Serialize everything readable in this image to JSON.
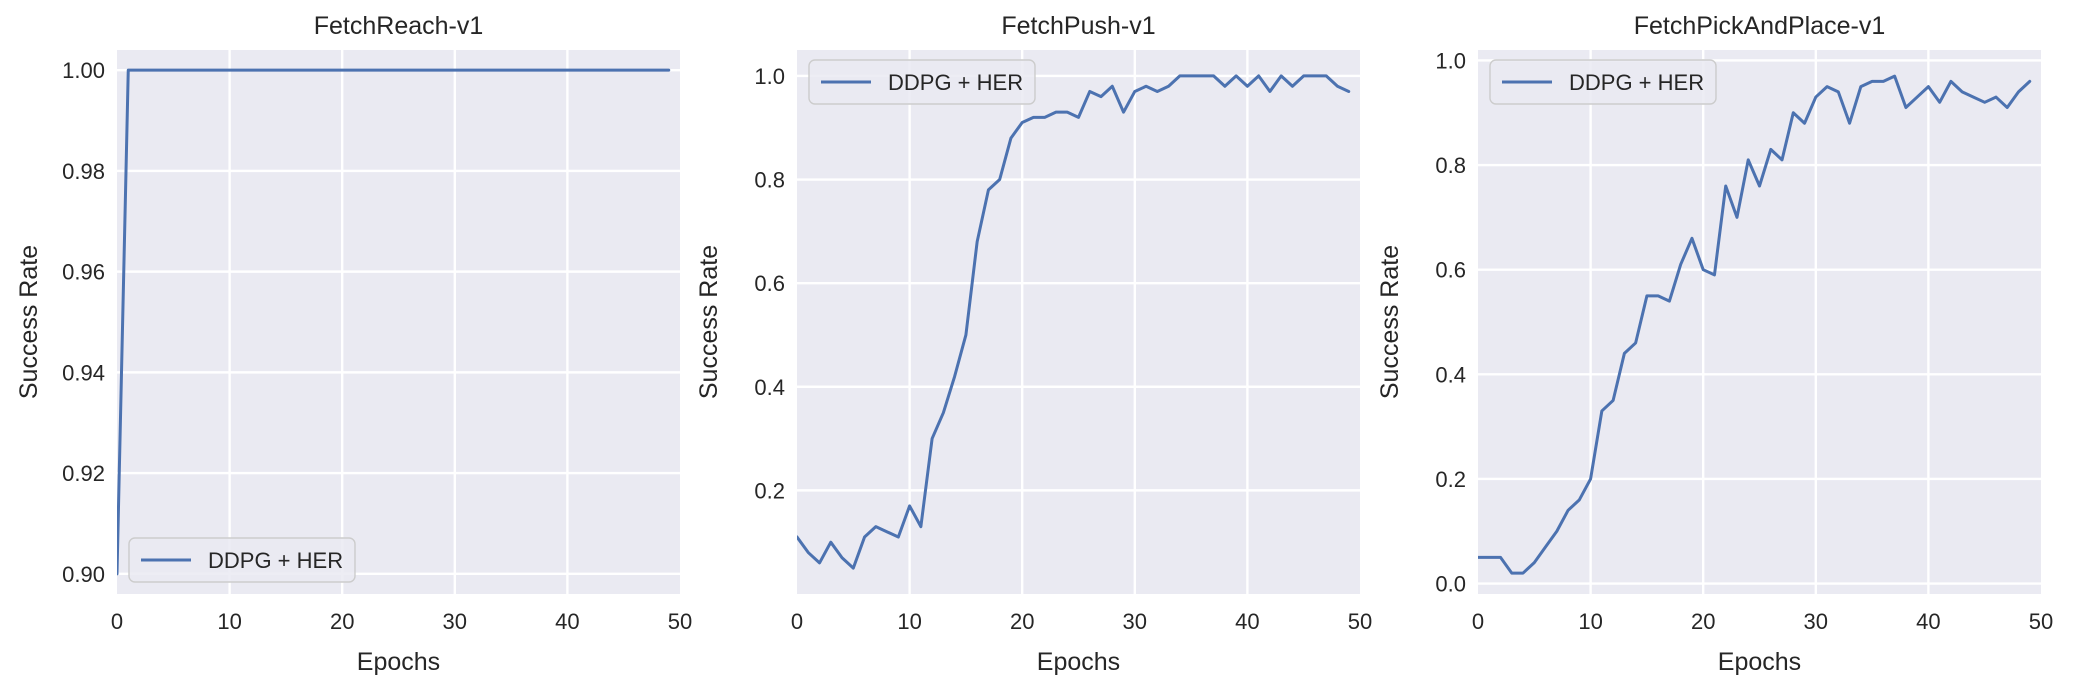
{
  "chart_data": [
    {
      "type": "line",
      "title": "FetchReach-v1",
      "xlabel": "Epochs",
      "ylabel": "Success Rate",
      "xlim": [
        0,
        50
      ],
      "ylim": [
        0.896,
        1.004
      ],
      "xticks": [
        0,
        10,
        20,
        30,
        40,
        50
      ],
      "yticks": [
        0.9,
        0.92,
        0.94,
        0.96,
        0.98,
        1.0
      ],
      "ytick_labels": [
        "0.90",
        "0.92",
        "0.94",
        "0.96",
        "0.98",
        "1.00"
      ],
      "grid": true,
      "legend_position": "lower-left",
      "series": [
        {
          "name": "DDPG + HER",
          "color": "#4c72b0",
          "x": [
            0,
            1,
            2,
            3,
            4,
            5,
            6,
            7,
            8,
            9,
            10,
            11,
            12,
            13,
            14,
            15,
            16,
            17,
            18,
            19,
            20,
            21,
            22,
            23,
            24,
            25,
            26,
            27,
            28,
            29,
            30,
            31,
            32,
            33,
            34,
            35,
            36,
            37,
            38,
            39,
            40,
            41,
            42,
            43,
            44,
            45,
            46,
            47,
            48,
            49
          ],
          "values": [
            0.9,
            1.0,
            1.0,
            1.0,
            1.0,
            1.0,
            1.0,
            1.0,
            1.0,
            1.0,
            1.0,
            1.0,
            1.0,
            1.0,
            1.0,
            1.0,
            1.0,
            1.0,
            1.0,
            1.0,
            1.0,
            1.0,
            1.0,
            1.0,
            1.0,
            1.0,
            1.0,
            1.0,
            1.0,
            1.0,
            1.0,
            1.0,
            1.0,
            1.0,
            1.0,
            1.0,
            1.0,
            1.0,
            1.0,
            1.0,
            1.0,
            1.0,
            1.0,
            1.0,
            1.0,
            1.0,
            1.0,
            1.0,
            1.0,
            1.0
          ]
        }
      ]
    },
    {
      "type": "line",
      "title": "FetchPush-v1",
      "xlabel": "Epochs",
      "ylabel": "Success Rate",
      "xlim": [
        0,
        50
      ],
      "ylim": [
        0.0,
        1.05
      ],
      "xticks": [
        0,
        10,
        20,
        30,
        40,
        50
      ],
      "yticks": [
        0.2,
        0.4,
        0.6,
        0.8,
        1.0
      ],
      "ytick_labels": [
        "0.2",
        "0.4",
        "0.6",
        "0.8",
        "1.0"
      ],
      "grid": true,
      "legend_position": "upper-left",
      "series": [
        {
          "name": "DDPG + HER",
          "color": "#4c72b0",
          "x": [
            0,
            1,
            2,
            3,
            4,
            5,
            6,
            7,
            8,
            9,
            10,
            11,
            12,
            13,
            14,
            15,
            16,
            17,
            18,
            19,
            20,
            21,
            22,
            23,
            24,
            25,
            26,
            27,
            28,
            29,
            30,
            31,
            32,
            33,
            34,
            35,
            36,
            37,
            38,
            39,
            40,
            41,
            42,
            43,
            44,
            45,
            46,
            47,
            48,
            49
          ],
          "values": [
            0.11,
            0.08,
            0.06,
            0.1,
            0.07,
            0.05,
            0.11,
            0.13,
            0.12,
            0.11,
            0.17,
            0.13,
            0.3,
            0.35,
            0.42,
            0.5,
            0.68,
            0.78,
            0.8,
            0.88,
            0.91,
            0.92,
            0.92,
            0.93,
            0.93,
            0.92,
            0.97,
            0.96,
            0.98,
            0.93,
            0.97,
            0.98,
            0.97,
            0.98,
            1.0,
            1.0,
            1.0,
            1.0,
            0.98,
            1.0,
            0.98,
            1.0,
            0.97,
            1.0,
            0.98,
            1.0,
            1.0,
            1.0,
            0.98,
            0.97
          ]
        }
      ]
    },
    {
      "type": "line",
      "title": "FetchPickAndPlace-v1",
      "xlabel": "Epochs",
      "ylabel": "Success Rate",
      "xlim": [
        0,
        50
      ],
      "ylim": [
        -0.02,
        1.02
      ],
      "xticks": [
        0,
        10,
        20,
        30,
        40,
        50
      ],
      "yticks": [
        0.0,
        0.2,
        0.4,
        0.6,
        0.8,
        1.0
      ],
      "ytick_labels": [
        "0.0",
        "0.2",
        "0.4",
        "0.6",
        "0.8",
        "1.0"
      ],
      "grid": true,
      "legend_position": "upper-left",
      "series": [
        {
          "name": "DDPG + HER",
          "color": "#4c72b0",
          "x": [
            0,
            1,
            2,
            3,
            4,
            5,
            6,
            7,
            8,
            9,
            10,
            11,
            12,
            13,
            14,
            15,
            16,
            17,
            18,
            19,
            20,
            21,
            22,
            23,
            24,
            25,
            26,
            27,
            28,
            29,
            30,
            31,
            32,
            33,
            34,
            35,
            36,
            37,
            38,
            39,
            40,
            41,
            42,
            43,
            44,
            45,
            46,
            47,
            48,
            49
          ],
          "values": [
            0.05,
            0.05,
            0.05,
            0.02,
            0.02,
            0.04,
            0.07,
            0.1,
            0.14,
            0.16,
            0.2,
            0.33,
            0.35,
            0.44,
            0.46,
            0.55,
            0.55,
            0.54,
            0.61,
            0.66,
            0.6,
            0.59,
            0.76,
            0.7,
            0.81,
            0.76,
            0.83,
            0.81,
            0.9,
            0.88,
            0.93,
            0.95,
            0.94,
            0.88,
            0.95,
            0.96,
            0.96,
            0.97,
            0.91,
            0.93,
            0.95,
            0.92,
            0.96,
            0.94,
            0.93,
            0.92,
            0.93,
            0.91,
            0.94,
            0.96
          ]
        }
      ]
    }
  ]
}
